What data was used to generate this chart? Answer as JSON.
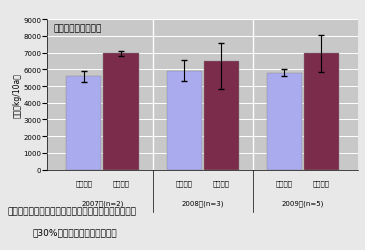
{
  "title": "バーは最大と最小値",
  "ylabel": "収量（kg/10a）",
  "bar_color_conventional": "#aaaaee",
  "bar_color_pulsed": "#7a2c4a",
  "background_color": "#c8c8c8",
  "fig_bg_color": "#e8e8e8",
  "ylim": [
    0,
    9000
  ],
  "yticks": [
    0,
    1000,
    2000,
    3000,
    4000,
    5000,
    6000,
    7000,
    8000,
    9000
  ],
  "groups": [
    {
      "year_label": "2007年(n=2)",
      "conventional_val": 5600,
      "conventional_err_low": 350,
      "conventional_err_high": 300,
      "pulsed_val": 6950,
      "pulsed_err_low": 150,
      "pulsed_err_high": 150
    },
    {
      "year_label": "2008年(n=3)",
      "conventional_val": 5900,
      "conventional_err_low": 600,
      "conventional_err_high": 650,
      "pulsed_val": 6500,
      "pulsed_err_low": 1700,
      "pulsed_err_high": 1100
    },
    {
      "year_label": "2009年(n=5)",
      "conventional_val": 5800,
      "conventional_err_low": 200,
      "conventional_err_high": 200,
      "pulsed_val": 6950,
      "pulsed_err_low": 1100,
      "pulsed_err_high": 1100
    }
  ],
  "xlabel_bar1": "慣行栽培",
  "xlabel_bar2": "拍動灌水",
  "caption_line1": "図２　農家圃場における慣行栽培と拍動自動灌水栽培",
  "caption_line2": "（30%減肥）の収量の年次変動"
}
